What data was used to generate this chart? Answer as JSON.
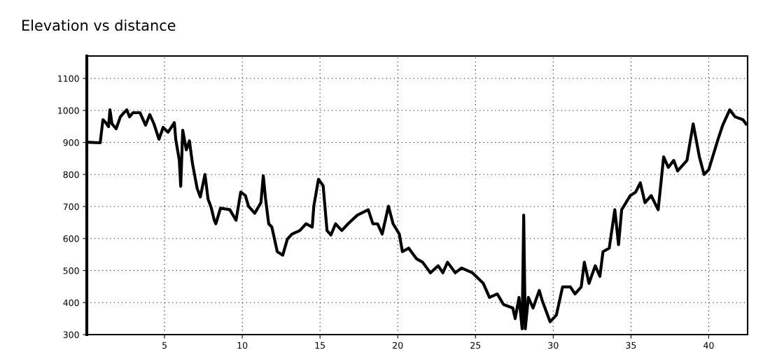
{
  "chart_data": {
    "type": "line",
    "title": "Elevation vs distance",
    "x": [
      0,
      0.86,
      1.04,
      1.22,
      1.4,
      1.49,
      1.62,
      1.89,
      2.16,
      2.39,
      2.57,
      2.75,
      2.97,
      3.42,
      3.78,
      4.05,
      4.32,
      4.64,
      4.91,
      5.23,
      5.63,
      5.72,
      5.95,
      6.04,
      6.17,
      6.4,
      6.6,
      6.8,
      7.1,
      7.3,
      7.6,
      7.8,
      8.0,
      8.2,
      8.3,
      8.6,
      9.2,
      9.6,
      9.9,
      10.2,
      10.4,
      10.8,
      11.2,
      11.35,
      11.5,
      11.7,
      11.9,
      12.25,
      12.6,
      12.9,
      13.2,
      13.7,
      14.1,
      14.5,
      14.6,
      14.9,
      15.2,
      15.45,
      15.7,
      16.0,
      16.4,
      16.8,
      17.4,
      18.1,
      18.4,
      18.7,
      19.0,
      19.4,
      19.7,
      20.1,
      20.3,
      20.7,
      21.2,
      21.6,
      22.1,
      22.6,
      22.9,
      23.2,
      23.7,
      24.1,
      24.8,
      25.5,
      25.9,
      26.4,
      26.8,
      27.4,
      27.55,
      27.8,
      28.0,
      28.1,
      28.2,
      28.4,
      28.7,
      29.1,
      29.3,
      29.8,
      30.2,
      30.6,
      31.1,
      31.4,
      31.8,
      32.0,
      32.3,
      32.7,
      33.0,
      33.2,
      33.6,
      33.96,
      34.2,
      34.4,
      34.95,
      35.3,
      35.6,
      35.9,
      36.3,
      36.75,
      37.1,
      37.4,
      37.75,
      38.0,
      38.6,
      39.0,
      39.4,
      39.7,
      40.0,
      40.6,
      40.9,
      41.35,
      41.7,
      42.2,
      42.4
    ],
    "series": [
      {
        "color": "#000000",
        "values": [
          901,
          899,
          971,
          962,
          949,
          1002,
          958,
          943,
          980,
          993,
          1002,
          980,
          993,
          993,
          954,
          987,
          958,
          910,
          947,
          932,
          962,
          910,
          844,
          763,
          938,
          877,
          905,
          833,
          756,
          730,
          800,
          723,
          697,
          657,
          646,
          695,
          690,
          657,
          745,
          734,
          701,
          679,
          712,
          796,
          723,
          646,
          636,
          559,
          548,
          598,
          614,
          625,
          646,
          636,
          701,
          785,
          765,
          625,
          611,
          646,
          625,
          646,
          673,
          690,
          646,
          646,
          614,
          701,
          646,
          614,
          559,
          570,
          537,
          526,
          493,
          515,
          493,
          526,
          493,
          508,
          493,
          460,
          416,
          427,
          394,
          383,
          350,
          416,
          318,
          673,
          318,
          416,
          383,
          438,
          405,
          340,
          361,
          449,
          449,
          427,
          449,
          526,
          460,
          515,
          482,
          559,
          570,
          690,
          581,
          690,
          734,
          745,
          774,
          712,
          734,
          690,
          855,
          822,
          844,
          811,
          844,
          958,
          855,
          800,
          815,
          910,
          954,
          1002,
          980,
          971,
          958
        ]
      }
    ],
    "xlim": [
      0,
      42.5
    ],
    "ylim": [
      300,
      1170
    ],
    "xticks": [
      5,
      10,
      15,
      20,
      25,
      30,
      35,
      40
    ],
    "yticks": [
      300,
      400,
      500,
      600,
      700,
      800,
      900,
      1000,
      1100
    ],
    "grid": true,
    "legend": false,
    "marker": "none",
    "line_style": "solid"
  }
}
